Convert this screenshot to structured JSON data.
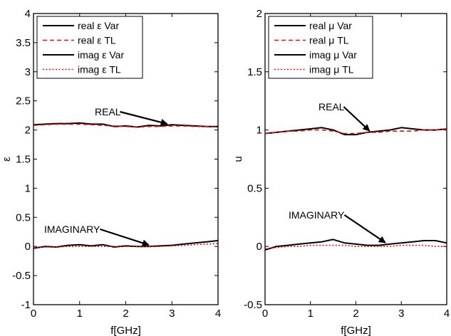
{
  "colors": {
    "var": "#000000",
    "tl": "#e01010",
    "frame": "#000000",
    "background": "#ffffff"
  },
  "chart_data": [
    {
      "type": "line",
      "xlabel": "f[GHz]",
      "ylabel": "ε",
      "xlim": [
        0,
        4
      ],
      "ylim": [
        -1,
        4
      ],
      "xticks": [
        0,
        1,
        2,
        3,
        4
      ],
      "yticks": [
        -1,
        -0.5,
        0,
        0.5,
        1,
        1.5,
        2,
        2.5,
        3,
        3.5,
        4
      ],
      "x_tick_labels": [
        "0",
        "1",
        "2",
        "3",
        "4"
      ],
      "y_tick_labels": [
        "-1",
        "-0.5",
        "0",
        "0.5",
        "1",
        "1.5",
        "2",
        "2.5",
        "3",
        "3.5",
        "4"
      ],
      "grid": false,
      "legend_position": "top-left",
      "x": [
        0,
        0.25,
        0.5,
        0.75,
        1,
        1.25,
        1.5,
        1.75,
        2,
        2.25,
        2.5,
        2.75,
        3,
        3.25,
        3.5,
        3.75,
        4
      ],
      "series": [
        {
          "name": "real ε Var",
          "style": "solid",
          "color": "#000000",
          "values": [
            2.09,
            2.1,
            2.11,
            2.11,
            2.12,
            2.1,
            2.1,
            2.06,
            2.07,
            2.05,
            2.08,
            2.07,
            2.09,
            2.08,
            2.07,
            2.06,
            2.06
          ]
        },
        {
          "name": "real ε TL",
          "style": "dashed",
          "color": "#e01010",
          "values": [
            2.08,
            2.09,
            2.1,
            2.1,
            2.1,
            2.09,
            2.08,
            2.07,
            2.06,
            2.05,
            2.06,
            2.06,
            2.07,
            2.07,
            2.06,
            2.06,
            2.05
          ]
        },
        {
          "name": "imag ε Var",
          "style": "solid",
          "color": "#000000",
          "values": [
            -0.03,
            0.0,
            -0.01,
            0.02,
            0.03,
            0.01,
            0.03,
            -0.01,
            0.01,
            0.0,
            0.0,
            0.01,
            0.02,
            0.04,
            0.06,
            0.08,
            0.1
          ]
        },
        {
          "name": "imag ε TL",
          "style": "dotted",
          "color": "#e01010",
          "values": [
            -0.02,
            -0.01,
            -0.01,
            0.0,
            0.0,
            0.0,
            0.0,
            0.0,
            0.0,
            0.0,
            0.0,
            0.0,
            0.01,
            0.02,
            0.03,
            0.04,
            0.05
          ]
        }
      ],
      "annotations": [
        {
          "text": "REAL",
          "points_to": [
            2.9,
            2.08
          ]
        },
        {
          "text": "IMAGINARY",
          "points_to": [
            2.5,
            0.0
          ]
        }
      ]
    },
    {
      "type": "line",
      "xlabel": "f[GHz]",
      "ylabel": "u",
      "xlim": [
        0,
        4
      ],
      "ylim": [
        -0.5,
        2
      ],
      "xticks": [
        0,
        1,
        2,
        3,
        4
      ],
      "yticks": [
        -0.5,
        0,
        0.5,
        1,
        1.5,
        2
      ],
      "x_tick_labels": [
        "0",
        "1",
        "2",
        "3",
        "4"
      ],
      "y_tick_labels": [
        "-0.5",
        "0",
        "0.5",
        "1",
        "1.5",
        "2"
      ],
      "grid": false,
      "legend_position": "top-left",
      "x": [
        0,
        0.25,
        0.5,
        0.75,
        1,
        1.25,
        1.5,
        1.75,
        2,
        2.25,
        2.5,
        2.75,
        3,
        3.25,
        3.5,
        3.75,
        4
      ],
      "series": [
        {
          "name": "real μ Var",
          "style": "solid",
          "color": "#000000",
          "values": [
            0.97,
            0.98,
            0.99,
            1.0,
            1.01,
            1.02,
            1.0,
            0.96,
            0.96,
            0.98,
            0.99,
            1.0,
            1.02,
            1.01,
            1.0,
            1.0,
            1.01
          ]
        },
        {
          "name": "real μ TL",
          "style": "dashed",
          "color": "#e01010",
          "values": [
            0.97,
            0.98,
            0.99,
            0.99,
            1.0,
            1.0,
            0.99,
            0.97,
            0.97,
            0.98,
            0.98,
            0.99,
            0.99,
            0.99,
            1.0,
            1.0,
            1.01
          ]
        },
        {
          "name": "imag μ Var",
          "style": "solid",
          "color": "#000000",
          "values": [
            -0.03,
            0.0,
            0.01,
            0.02,
            0.03,
            0.04,
            0.06,
            0.03,
            0.02,
            0.01,
            0.01,
            0.02,
            0.03,
            0.04,
            0.05,
            0.05,
            0.03
          ]
        },
        {
          "name": "imag μ TL",
          "style": "dotted",
          "color": "#e01010",
          "values": [
            -0.02,
            -0.01,
            0.0,
            0.0,
            0.01,
            0.01,
            0.01,
            0.01,
            0.0,
            0.0,
            0.0,
            0.0,
            0.01,
            0.01,
            0.01,
            0.0,
            0.0
          ]
        }
      ],
      "annotations": [
        {
          "text": "REAL",
          "points_to": [
            2.3,
            0.98
          ]
        },
        {
          "text": "IMAGINARY",
          "points_to": [
            2.65,
            0.02
          ]
        }
      ]
    }
  ]
}
